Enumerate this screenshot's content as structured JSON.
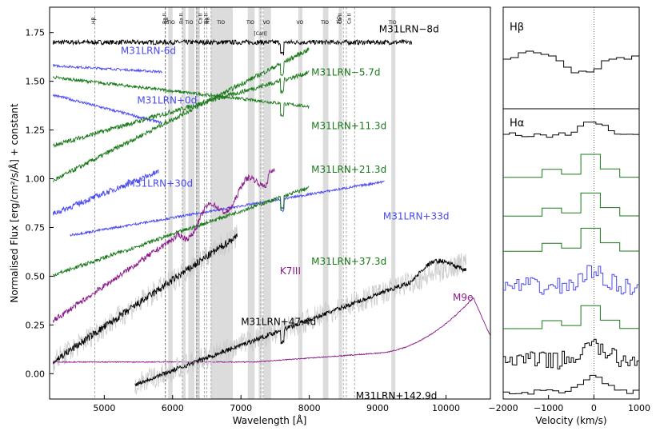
{
  "chart_data": [
    {
      "type": "line",
      "panel": "main",
      "xlabel": "Wavelength [Å]",
      "ylabel": "Normalised Flux [erg/cm²/s/Å] + constant",
      "xlim": [
        4200,
        10650
      ],
      "ylim": [
        -0.13,
        1.88
      ],
      "xticks": [
        5000,
        6000,
        7000,
        8000,
        9000,
        10000
      ],
      "yticks": [
        0.0,
        0.25,
        0.5,
        0.75,
        1.0,
        1.25,
        1.5,
        1.75
      ],
      "ytick_labels": [
        "0.00",
        "0.25",
        "0.50",
        "0.75",
        "1.00",
        "1.25",
        "1.50",
        "1.75"
      ],
      "bands": [
        {
          "x0": 5935,
          "x1": 6000,
          "label": "TiO"
        },
        {
          "x0": 6145,
          "x1": 6190,
          "label": "Ba II"
        },
        {
          "x0": 6230,
          "x1": 6320,
          "label": "TiO"
        },
        {
          "x0": 6340,
          "x1": 6400,
          "label": ""
        },
        {
          "x0": 6560,
          "x1": 6880,
          "label": "TiO"
        },
        {
          "x0": 7100,
          "x1": 7200,
          "label": "TiO"
        },
        {
          "x0": 7260,
          "x1": 7300,
          "label": ""
        },
        {
          "x0": 7330,
          "x1": 7440,
          "label": "VO"
        },
        {
          "x0": 7840,
          "x1": 7900,
          "label": "VO"
        },
        {
          "x0": 8200,
          "x1": 8280,
          "label": "TiO"
        },
        {
          "x0": 8430,
          "x1": 8480,
          "label": "TiO"
        },
        {
          "x0": 9200,
          "x1": 9260,
          "label": "TiO"
        }
      ],
      "line_markers": [
        {
          "x": 4861,
          "label": "Hβ"
        },
        {
          "x": 5890,
          "label": "Ba II"
        },
        {
          "x": 5896,
          "label": "Na I"
        },
        {
          "x": 6142,
          "label": "Ba II"
        },
        {
          "x": 6347,
          "label": ""
        },
        {
          "x": 6371,
          "label": ""
        },
        {
          "x": 6497,
          "label": "Ba II"
        },
        {
          "x": 6463,
          "label": "Ca I"
        },
        {
          "x": 6563,
          "label": "Hα"
        },
        {
          "x": 7291,
          "label": "[Ca II]"
        },
        {
          "x": 7324,
          "label": ""
        },
        {
          "x": 8498,
          "label": "Ca II"
        },
        {
          "x": 8542,
          "label": "Ca II"
        },
        {
          "x": 8662,
          "label": "Ca II"
        }
      ],
      "band_labels": [
        {
          "x": 5902,
          "text": "Ba II"
        },
        {
          "x": 5935,
          "text": "Na"
        },
        {
          "x": 5990,
          "text": "TiO"
        },
        {
          "x": 6148,
          "text": "Ba II"
        },
        {
          "x": 6255,
          "text": "TiO"
        },
        {
          "x": 6430,
          "text": "Ca II"
        },
        {
          "x": 6510,
          "text": "Ba II"
        },
        {
          "x": 6535,
          "text": "Na"
        },
        {
          "x": 6720,
          "text": "TiO"
        },
        {
          "x": 7150,
          "text": "TiO"
        },
        {
          "x": 7380,
          "text": "VO"
        },
        {
          "x": 7330,
          "text": "[CaII]"
        },
        {
          "x": 7870,
          "text": "VO"
        },
        {
          "x": 8240,
          "text": "TiO"
        },
        {
          "x": 8455,
          "text": "TiO"
        },
        {
          "x": 8470,
          "text": "Ca II"
        },
        {
          "x": 8610,
          "text": "Ca II"
        },
        {
          "x": 9230,
          "text": "TiO"
        },
        {
          "x": 4865,
          "text": "Hβ"
        }
      ],
      "telluric_x": [
        6870,
        7605
      ],
      "series": [
        {
          "name": "M31LRN−8d",
          "color": "#000000",
          "x0": 4250,
          "x1": 9500,
          "level": 1.7,
          "slope": 0.0,
          "noise": 0.012,
          "label_x": 9020,
          "label_y": 1.75
        },
        {
          "name": "M31LRN-6d",
          "color": "#4a4aee",
          "x0": 4250,
          "x1": 5850,
          "level": 1.58,
          "slope": -0.02,
          "noise": 0.006,
          "label_x": 5240,
          "label_y": 1.64
        },
        {
          "name": "M31LRN−5.7d",
          "color": "#1a7a1a",
          "x0": 4250,
          "x1": 8000,
          "level": 1.52,
          "slope": -0.04,
          "noise": 0.008,
          "label_x": 8030,
          "label_y": 1.53
        },
        {
          "name": "M31LRN+0d",
          "color": "#4a4aee",
          "x0": 4250,
          "x1": 5850,
          "level": 1.43,
          "slope": -0.09,
          "noise": 0.007,
          "label_x": 5480,
          "label_y": 1.385
        },
        {
          "name": "M31LRN+11.3d",
          "color": "#1a7a1a",
          "x0": 4250,
          "x1": 8000,
          "level": 1.17,
          "slope": 0.1,
          "noise": 0.012,
          "label_x": 8030,
          "label_y": 1.255
        },
        {
          "name": "M31LRN+21.3d",
          "color": "#1a7a1a",
          "x0": 4250,
          "x1": 8000,
          "level": 0.99,
          "slope": 0.18,
          "noise": 0.012,
          "label_x": 8030,
          "label_y": 1.03
        },
        {
          "name": "M31LRN+30d",
          "color": "#4a4aee",
          "x0": 4250,
          "x1": 5800,
          "level": 0.82,
          "slope": 0.14,
          "noise": 0.015,
          "label_x": 5330,
          "label_y": 0.96
        },
        {
          "name": "M31LRN+33d",
          "color": "#4a4aee",
          "x0": 4500,
          "x1": 9100,
          "level": 0.71,
          "slope": 0.06,
          "noise": 0.006,
          "label_x": 9080,
          "label_y": 0.79
        },
        {
          "name": "M31LRN+37.3d",
          "color": "#1a7a1a",
          "x0": 4250,
          "x1": 8000,
          "level": 0.505,
          "slope": 0.12,
          "noise": 0.01,
          "label_x": 8030,
          "label_y": 0.56
        },
        {
          "name": "K7III",
          "color": "#8b1a8b",
          "x0": 4250,
          "x1": 7500,
          "level": 0.27,
          "slope": 0.24,
          "noise": 0.015,
          "label_x": 7570,
          "label_y": 0.51
        },
        {
          "name": "M31LRN+47.4d",
          "color": "#000000",
          "x0": 4250,
          "x1": 6950,
          "level": 0.06,
          "slope": 0.24,
          "noise": 0.02,
          "label_x": 7000,
          "label_y": 0.25
        },
        {
          "name": "M9e",
          "color": "#8b1a8b",
          "x0": 4250,
          "x1": 10650,
          "level": 0.06,
          "slope": 0.0,
          "noise": 0.004,
          "label_x": 10100,
          "label_y": 0.375
        },
        {
          "name": "M31LRN+142.9d",
          "color": "#000000",
          "x0": 5450,
          "x1": 10300,
          "level": -0.055,
          "slope": 0.13,
          "noise": 0.012,
          "label_x": 8680,
          "label_y": -0.13
        }
      ]
    },
    {
      "type": "line",
      "panel": "h-beta",
      "title": "Hβ",
      "xlim": [
        -2000,
        1000
      ],
      "series_style": "steps",
      "values": [
        0.62,
        0.64,
        0.7,
        0.72,
        0.7,
        0.68,
        0.66,
        0.6,
        0.52,
        0.45,
        0.47,
        0.46,
        0.5,
        0.6,
        0.62,
        0.64,
        0.62,
        0.66
      ],
      "color": "#000000"
    },
    {
      "type": "line",
      "panel": "h-alpha",
      "title": "Hα",
      "xlabel": "Velocity (km/s)",
      "xlim": [
        -2000,
        1000
      ],
      "xticks": [
        -2000,
        -1000,
        0,
        1000
      ],
      "series": [
        {
          "name": "M31LRN−8d",
          "color": "#000000",
          "style": "steps",
          "base": 0.7
        },
        {
          "name": "M31LRN−5.7d",
          "color": "#1a7a1a",
          "style": "coarse",
          "base": 0.58
        },
        {
          "name": "M31LRN+11.3d",
          "color": "#1a7a1a",
          "style": "coarse",
          "base": 0.47
        },
        {
          "name": "M31LRN+21.3d",
          "color": "#1a7a1a",
          "style": "coarse",
          "base": 0.37
        },
        {
          "name": "M31LRN+30d",
          "color": "#4a4aee",
          "style": "noisy",
          "base": 0.27
        },
        {
          "name": "M31LRN+37.3d",
          "color": "#1a7a1a",
          "style": "coarse",
          "base": 0.15
        },
        {
          "name": "M31LRN+47.4d",
          "color": "#000000",
          "style": "noisy",
          "base": 0.06
        },
        {
          "name": "M31LRN+142.9d",
          "color": "#000000",
          "style": "steps",
          "base": -0.03
        }
      ]
    }
  ]
}
